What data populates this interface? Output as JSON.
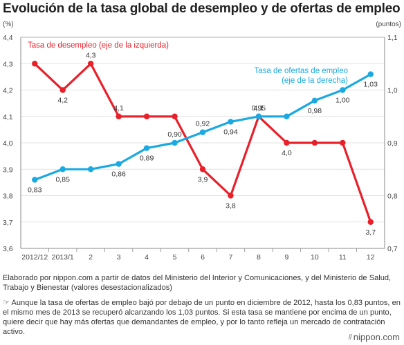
{
  "title": "Evolución de la tasa global de desempleo y de ofertas de empleo",
  "source": "Elaborado por nippon.com a partir de datos del Ministerio del Interior y Comunicaciones, y del Ministerio de Salud, Trabajo y Bienestar (valores desestacionalizados)",
  "note_icon": "pointing-hand-icon",
  "note": "Aunque la tasa de ofertas de empleo bajó por debajo de un punto en diciembre de 2012, hasta los 0,83 puntos, en el mismo mes de 2013 se recuperó alcanzando los 1,03 puntos. Si esta tasa se mantiene por encima de un punto, quiere decir que hay más ofertas que demandantes de empleo, y por lo tanto refleja un mercado de contratación activo.",
  "brand": "nippon.com",
  "chart_data": {
    "type": "line",
    "categories": [
      "2012/12",
      "2013/1",
      "2",
      "3",
      "4",
      "5",
      "6",
      "7",
      "8",
      "9",
      "10",
      "11",
      "12"
    ],
    "left_axis": {
      "unit": "(%)",
      "ylim": [
        3.6,
        4.4
      ],
      "ticks": [
        "3,6",
        "3,7",
        "3,8",
        "3,9",
        "4,0",
        "4,1",
        "4,2",
        "4,3",
        "4,4"
      ]
    },
    "right_axis": {
      "unit": "(puntos)",
      "ylim": [
        0.7,
        1.1
      ],
      "ticks": [
        "0,7",
        "0,8",
        "0,9",
        "1,0",
        "1,1"
      ]
    },
    "grid": true,
    "series": [
      {
        "name": "Tasa de desempleo (eje de la izquierda)",
        "axis": "left",
        "color": "#e8202a",
        "values": [
          4.3,
          4.2,
          4.3,
          4.1,
          4.1,
          4.1,
          3.9,
          3.8,
          4.1,
          4.0,
          4.0,
          4.0,
          3.7
        ],
        "data_labels": [
          {
            "i": 1,
            "text": "4,2"
          },
          {
            "i": 2,
            "text": "4,3"
          },
          {
            "i": 3,
            "text": "4,1"
          },
          {
            "i": 6,
            "text": "3,9"
          },
          {
            "i": 7,
            "text": "3,8"
          },
          {
            "i": 8,
            "text": "4,1"
          },
          {
            "i": 9,
            "text": "4,0"
          },
          {
            "i": 12,
            "text": "3,7"
          }
        ]
      },
      {
        "name": "Tasa de ofertas de empleo (eje de la derecha)",
        "axis": "right",
        "color": "#1aa9e0",
        "values": [
          0.83,
          0.85,
          0.85,
          0.86,
          0.89,
          0.9,
          0.92,
          0.94,
          0.95,
          0.95,
          0.98,
          1.0,
          1.03
        ],
        "data_labels": [
          {
            "i": 0,
            "text": "0,83"
          },
          {
            "i": 1,
            "text": "0,85"
          },
          {
            "i": 3,
            "text": "0,86"
          },
          {
            "i": 4,
            "text": "0,89"
          },
          {
            "i": 5,
            "text": "0,90"
          },
          {
            "i": 6,
            "text": "0,92"
          },
          {
            "i": 7,
            "text": "0,94"
          },
          {
            "i": 8,
            "text": "0,95"
          },
          {
            "i": 10,
            "text": "0,98"
          },
          {
            "i": 11,
            "text": "1,00"
          },
          {
            "i": 12,
            "text": "1,03"
          }
        ]
      }
    ],
    "legend": [
      {
        "series": 0,
        "lines": [
          "Tasa de desempleo (eje de la izquierda)"
        ]
      },
      {
        "series": 1,
        "lines": [
          "Tasa de ofertas de empleo",
          "(eje de la derecha)"
        ]
      }
    ]
  }
}
